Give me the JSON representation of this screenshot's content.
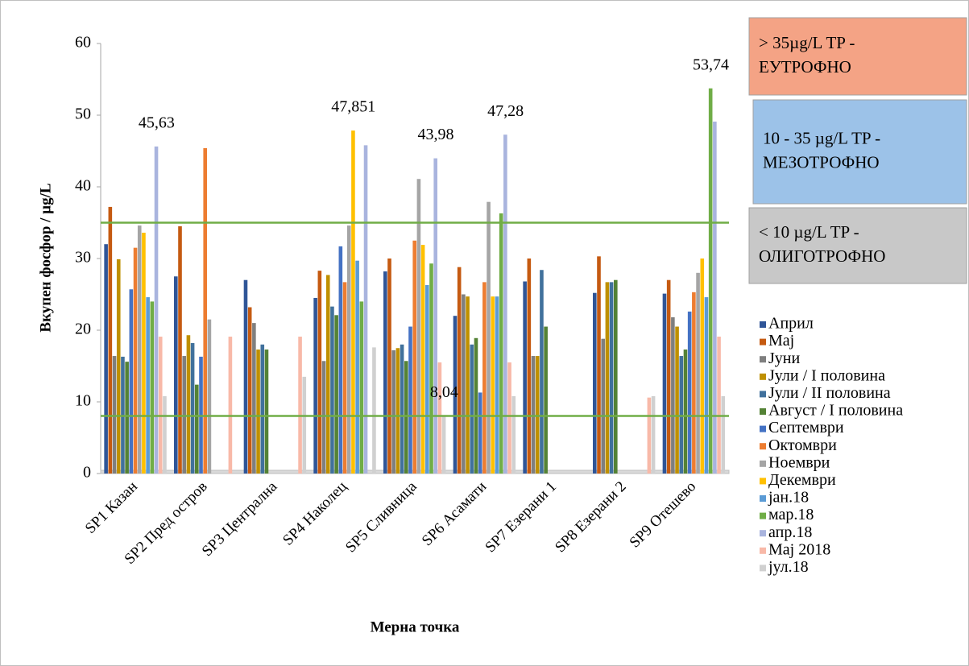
{
  "chart_data": {
    "type": "bar",
    "y_label": "Вкупен фосфор / µg/L",
    "x_label": "Мерна точка",
    "categories": [
      "SP1 Казан",
      "SP2 Пред остров",
      "SP3 Централна",
      "SP4 Наколец",
      "SP5 Сливница",
      "SP6 Асамати",
      "SP7 Езерани 1",
      "SP8 Езерани 2",
      "SP9 Отешево"
    ],
    "ylim": [
      0,
      60
    ],
    "yticks": [
      0,
      10,
      20,
      30,
      40,
      50,
      60
    ],
    "reference_lines": [
      {
        "value": 35,
        "color": "#70ad47"
      },
      {
        "value": 8.04,
        "color": "#70ad47"
      }
    ],
    "zones": [
      {
        "lines": [
          "> 35µg/L TP -",
          "ЕУТРОФНО"
        ],
        "color": "#f4a385"
      },
      {
        "lines": [
          "10 - 35 µg/L TP -",
          "МЕЗОТРОФНО"
        ],
        "color": "#9cc2e8"
      },
      {
        "lines": [
          "< 10 µg/L TP -",
          "ОЛИГОТРОФНО"
        ],
        "color": "#c8c8c8"
      }
    ],
    "series": [
      {
        "name": "Април",
        "color": "#2f5597",
        "values": [
          32,
          27.5,
          27,
          24.5,
          28.2,
          22,
          26.8,
          25.2,
          25.1
        ]
      },
      {
        "name": "Мај",
        "color": "#c55a11",
        "values": [
          37.2,
          34.5,
          23.2,
          28.3,
          30,
          28.8,
          30,
          30.3,
          27
        ]
      },
      {
        "name": "Јуни",
        "color": "#7f7f7f",
        "values": [
          16.4,
          16.4,
          21,
          15.7,
          17.2,
          25,
          16.4,
          18.8,
          21.8
        ]
      },
      {
        "name": "Јули / I половина",
        "color": "#bf9000",
        "values": [
          29.9,
          19.3,
          17.3,
          27.7,
          17.5,
          24.7,
          16.4,
          26.7,
          20.5
        ]
      },
      {
        "name": "Јули / II половина",
        "color": "#41719c",
        "values": [
          16.3,
          18.2,
          18,
          23.3,
          18,
          18,
          28.4,
          26.7,
          16.4
        ]
      },
      {
        "name": "Август / I половина",
        "color": "#548235",
        "values": [
          15.6,
          12.4,
          17.3,
          22.1,
          15.7,
          18.9,
          20.5,
          27,
          17.3
        ]
      },
      {
        "name": "Септември",
        "color": "#4472c4",
        "values": [
          25.7,
          16.3,
          null,
          31.7,
          20.5,
          11.3,
          null,
          null,
          22.6
        ]
      },
      {
        "name": "Октомври",
        "color": "#ed7d31",
        "values": [
          31.5,
          45.4,
          null,
          26.7,
          32.5,
          26.7,
          null,
          null,
          25.3
        ]
      },
      {
        "name": "Ноември",
        "color": "#a5a5a5",
        "values": [
          34.6,
          21.5,
          null,
          34.6,
          41.1,
          37.9,
          null,
          null,
          28
        ]
      },
      {
        "name": "Декември",
        "color": "#ffc000",
        "values": [
          33.6,
          null,
          null,
          47.851,
          31.9,
          24.7,
          null,
          null,
          30
        ],
        "value_labels": [
          null,
          null,
          null,
          "47,851",
          null,
          null,
          null,
          null,
          null
        ]
      },
      {
        "name": "јан.18",
        "color": "#5b9bd5",
        "values": [
          24.6,
          null,
          null,
          29.7,
          26.3,
          24.7,
          null,
          null,
          24.6
        ]
      },
      {
        "name": "мар.18",
        "color": "#70ad47",
        "values": [
          24,
          null,
          null,
          24,
          29.3,
          36.3,
          null,
          null,
          53.74
        ],
        "value_labels": [
          null,
          null,
          null,
          null,
          null,
          null,
          null,
          null,
          "53,74"
        ]
      },
      {
        "name": "апр.18",
        "color": "#a9b4de",
        "values": [
          45.63,
          null,
          null,
          45.8,
          43.98,
          47.28,
          null,
          null,
          49.1
        ],
        "value_labels": [
          "45,63",
          null,
          null,
          null,
          "43,98",
          "47,28",
          null,
          null,
          null
        ]
      },
      {
        "name": "Мај 2018",
        "color": "#f8b9a8",
        "values": [
          19.1,
          19.1,
          19.1,
          null,
          15.5,
          15.5,
          null,
          10.6,
          19.1
        ]
      },
      {
        "name": "јул.18",
        "color": "#d0d0d0",
        "values": [
          10.8,
          null,
          13.5,
          17.6,
          8.04,
          10.8,
          null,
          10.8,
          10.8
        ],
        "value_labels": [
          null,
          null,
          null,
          null,
          "8,04",
          null,
          null,
          null,
          null
        ]
      }
    ]
  }
}
